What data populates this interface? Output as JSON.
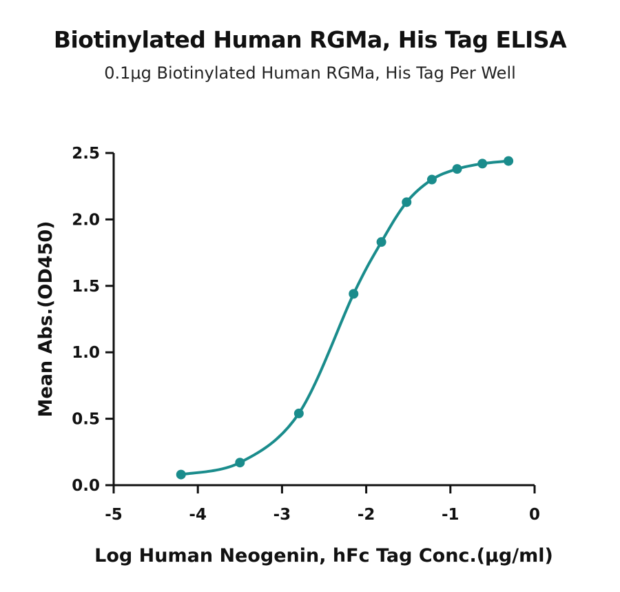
{
  "chart_data": {
    "type": "line",
    "title": "Biotinylated Human RGMa, His Tag ELISA",
    "subtitle": "0.1μg Biotinylated Human RGMa, His Tag Per Well",
    "xlabel": "Log Human Neogenin, hFc Tag Conc.(μg/ml)",
    "ylabel": "Mean Abs.(OD450)",
    "xlim": [
      -5,
      0
    ],
    "ylim": [
      0,
      2.5
    ],
    "x_ticks": [
      "-5",
      "-4",
      "-3",
      "-2",
      "-1",
      "0"
    ],
    "y_ticks": [
      "0.0",
      "0.5",
      "1.0",
      "1.5",
      "2.0",
      "2.5"
    ],
    "grid": false,
    "legend": "none",
    "series": [
      {
        "color": "#1a8c8c",
        "x": [
          -4.2,
          -3.5,
          -2.8,
          -2.15,
          -1.82,
          -1.52,
          -1.22,
          -0.92,
          -0.62,
          -0.31
        ],
        "y": [
          0.08,
          0.17,
          0.54,
          1.44,
          1.83,
          2.13,
          2.3,
          2.38,
          2.42,
          2.44
        ]
      }
    ]
  }
}
